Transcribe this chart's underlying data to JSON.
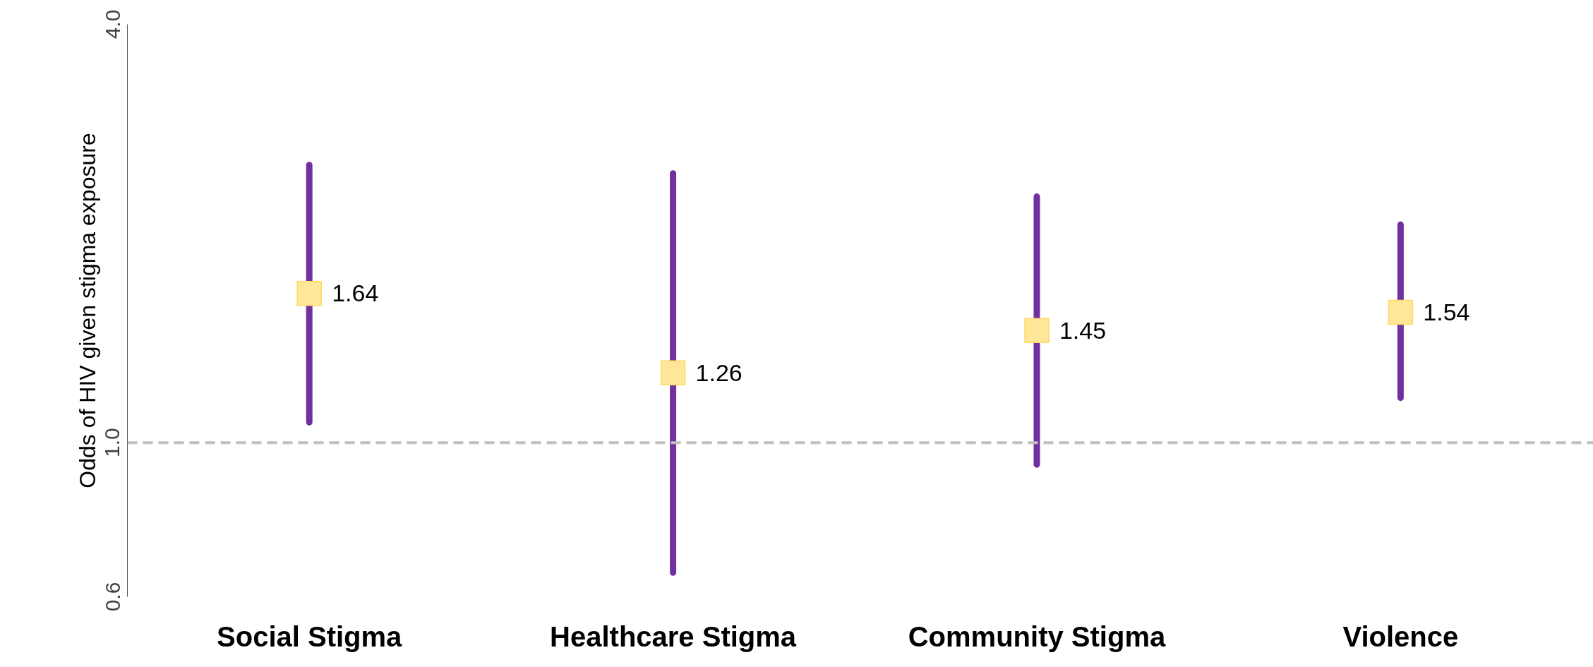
{
  "chart_data": {
    "type": "scatter",
    "ylabel": "Odds of HIV given stigma exposure",
    "categories": [
      "Social Stigma",
      "Healthcare Stigma",
      "Community Stigma",
      "Violence"
    ],
    "series": [
      {
        "color": "#ffe699",
        "values": [
          1.64,
          1.26,
          1.45,
          1.54
        ],
        "errors": [
          [
            1.07,
            2.51
          ],
          [
            0.65,
            2.44
          ],
          [
            0.93,
            2.26
          ],
          [
            1.16,
            2.06
          ]
        ]
      }
    ],
    "log": true,
    "ylim": [
      0.6,
      4.0
    ],
    "yticks": [
      0.6,
      {
        "value": 1,
        "label": "1.0"
      },
      {
        "value": 4,
        "label": "4.0"
      }
    ],
    "ref_lines": [
      {
        "axis": "y",
        "value": 1,
        "color": "#c0c0c0",
        "line_style": "dashed"
      }
    ],
    "data_labels": true,
    "marker": "square",
    "grid": false
  }
}
